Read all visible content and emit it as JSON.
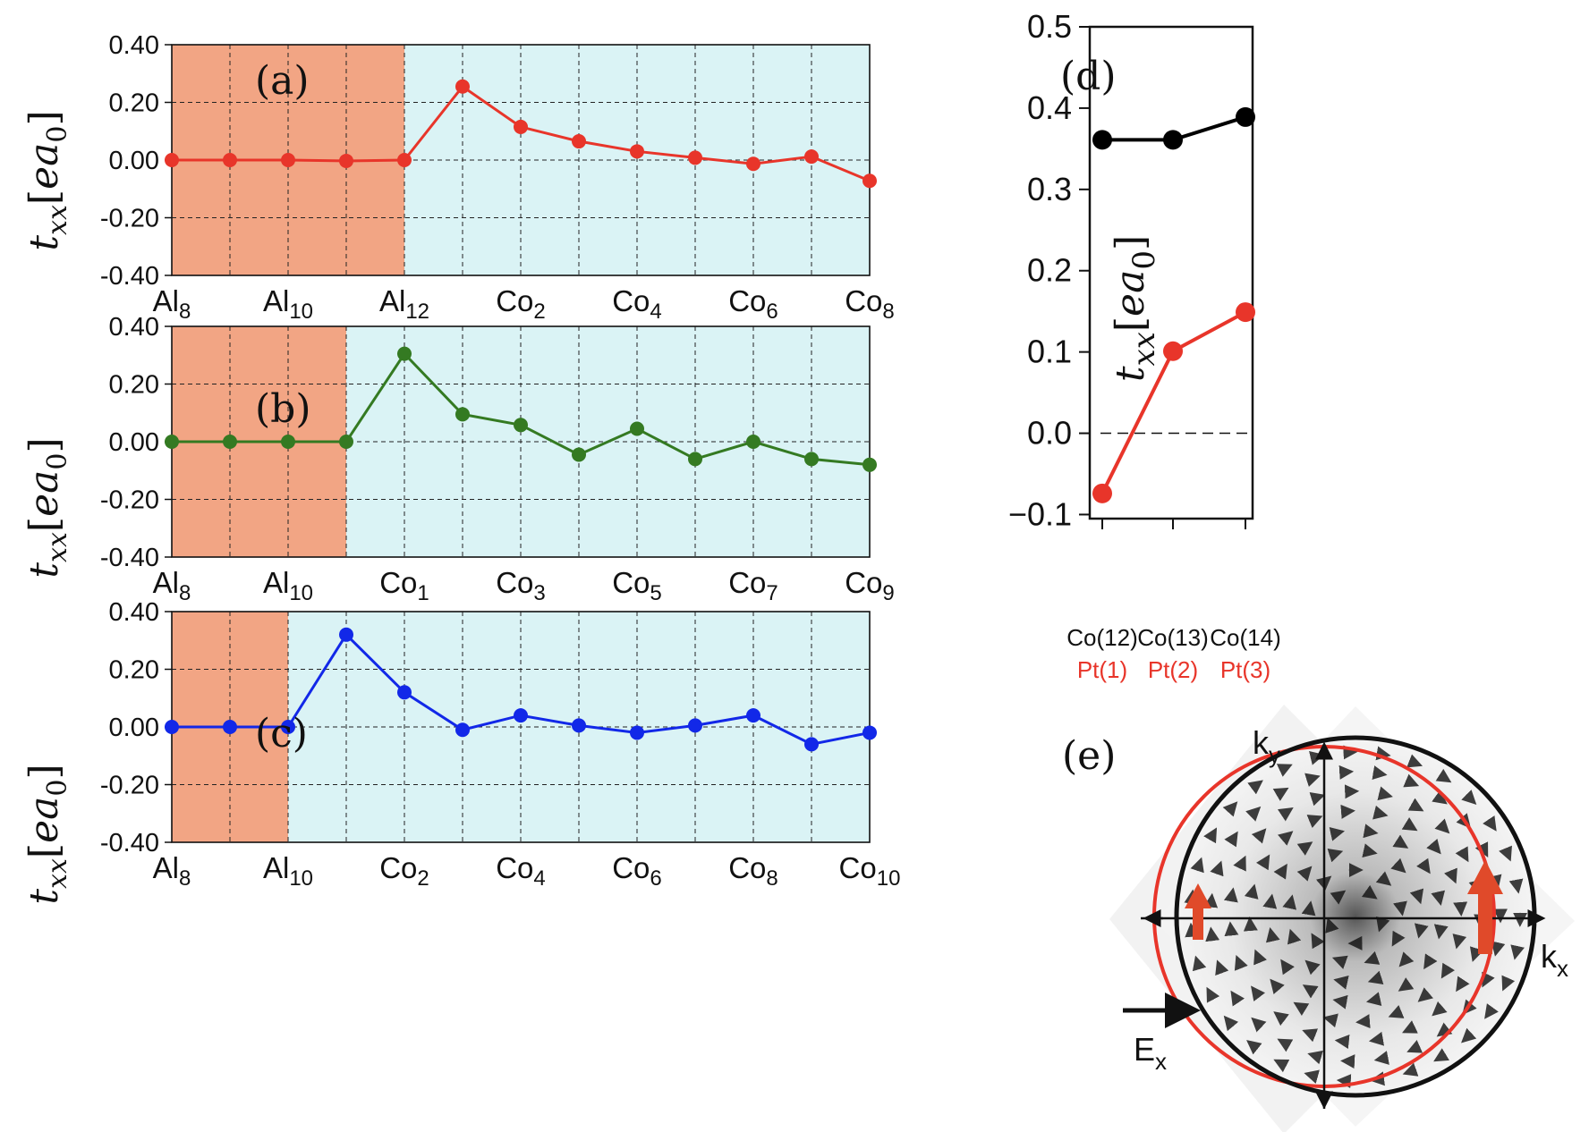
{
  "colors": {
    "al_region": "#f2a584",
    "co_region": "#daf3f5",
    "series_a": "#e8352a",
    "series_b": "#347a22",
    "series_c": "#1228e8",
    "d_black": "#000000",
    "d_red": "#e8352a"
  },
  "chart_data": [
    {
      "id": "a",
      "type": "line",
      "panel_label": "(a)",
      "ylabel_main": "t",
      "ylabel_sub": "xx",
      "ylabel_unit_open": "[",
      "ylabel_unit": "ea",
      "ylabel_unit_sub": "0",
      "ylabel_unit_close": "]",
      "ylim": [
        -0.4,
        0.4
      ],
      "yticks": [
        "0.40",
        "0.20",
        "0.00",
        "-0.20",
        "-0.40"
      ],
      "xlim": [
        8,
        20
      ],
      "al_region_end": 12,
      "xtick_labels": [
        {
          "x": 8,
          "base": "Al",
          "sub": "8"
        },
        {
          "x": 10,
          "base": "Al",
          "sub": "10"
        },
        {
          "x": 12,
          "base": "Al",
          "sub": "12"
        },
        {
          "x": 14,
          "base": "Co",
          "sub": "2"
        },
        {
          "x": 16,
          "base": "Co",
          "sub": "4"
        },
        {
          "x": 18,
          "base": "Co",
          "sub": "6"
        },
        {
          "x": 20,
          "base": "Co",
          "sub": "8"
        }
      ],
      "x": [
        8,
        9,
        10,
        11,
        12,
        13,
        14,
        15,
        16,
        17,
        18,
        19,
        20
      ],
      "y": [
        0.0,
        0.0,
        0.0,
        -0.003,
        0.0,
        0.255,
        0.115,
        0.065,
        0.03,
        0.008,
        -0.013,
        0.012,
        -0.072
      ],
      "color": "#e8352a",
      "grid": true
    },
    {
      "id": "b",
      "type": "line",
      "panel_label": "(b)",
      "ylabel_main": "t",
      "ylabel_sub": "xx",
      "ylabel_unit_open": "[",
      "ylabel_unit": "ea",
      "ylabel_unit_sub": "0",
      "ylabel_unit_close": "]",
      "ylim": [
        -0.4,
        0.4
      ],
      "yticks": [
        "0.40",
        "0.20",
        "0.00",
        "-0.20",
        "-0.40"
      ],
      "xlim": [
        8,
        20
      ],
      "al_region_end": 11,
      "xtick_labels": [
        {
          "x": 8,
          "base": "Al",
          "sub": "8"
        },
        {
          "x": 10,
          "base": "Al",
          "sub": "10"
        },
        {
          "x": 12,
          "base": "Co",
          "sub": "1"
        },
        {
          "x": 14,
          "base": "Co",
          "sub": "3"
        },
        {
          "x": 16,
          "base": "Co",
          "sub": "5"
        },
        {
          "x": 18,
          "base": "Co",
          "sub": "7"
        },
        {
          "x": 20,
          "base": "Co",
          "sub": "9"
        }
      ],
      "x": [
        8,
        9,
        10,
        11,
        12,
        13,
        14,
        15,
        16,
        17,
        18,
        19,
        20
      ],
      "y": [
        0.0,
        0.0,
        0.0,
        0.0,
        0.305,
        0.095,
        0.058,
        -0.045,
        0.045,
        -0.06,
        0.0,
        -0.06,
        -0.08
      ],
      "color": "#347a22",
      "grid": true
    },
    {
      "id": "c",
      "type": "line",
      "panel_label": "(c)",
      "ylabel_main": "t",
      "ylabel_sub": "xx",
      "ylabel_unit_open": "[",
      "ylabel_unit": "ea",
      "ylabel_unit_sub": "0",
      "ylabel_unit_close": "]",
      "ylim": [
        -0.4,
        0.4
      ],
      "yticks": [
        "0.40",
        "0.20",
        "0.00",
        "-0.20",
        "-0.40"
      ],
      "xlim": [
        8,
        20
      ],
      "al_region_end": 10,
      "xtick_labels": [
        {
          "x": 8,
          "base": "Al",
          "sub": "8"
        },
        {
          "x": 10,
          "base": "Al",
          "sub": "10"
        },
        {
          "x": 12,
          "base": "Co",
          "sub": "2"
        },
        {
          "x": 14,
          "base": "Co",
          "sub": "4"
        },
        {
          "x": 16,
          "base": "Co",
          "sub": "6"
        },
        {
          "x": 18,
          "base": "Co",
          "sub": "8"
        },
        {
          "x": 20,
          "base": "Co",
          "sub": "10"
        }
      ],
      "x": [
        8,
        9,
        10,
        11,
        12,
        13,
        14,
        15,
        16,
        17,
        18,
        19,
        20
      ],
      "y": [
        0.0,
        0.0,
        0.0,
        0.32,
        0.12,
        -0.01,
        0.04,
        0.005,
        -0.02,
        0.005,
        0.04,
        -0.06,
        -0.02
      ],
      "color": "#1228e8",
      "grid": true
    },
    {
      "id": "d",
      "type": "line",
      "panel_label": "(d)",
      "ylabel_main": "t",
      "ylabel_sub": "xx",
      "ylabel_unit_open": "[",
      "ylabel_unit": "ea",
      "ylabel_unit_sub": "0",
      "ylabel_unit_close": "]",
      "ylim": [
        -0.1,
        0.5
      ],
      "yticks": [
        "0.5",
        "0.4",
        "0.3",
        "0.2",
        "0.1",
        "0.0",
        "−0.1"
      ],
      "categories_black": [
        "Co(12)",
        "Co(13)",
        "Co(14)"
      ],
      "categories_red": [
        "Pt(1)",
        "Pt(2)",
        "Pt(3)"
      ],
      "series": [
        {
          "values": [
            0.361,
            0.361,
            0.389
          ],
          "color": "#000000"
        },
        {
          "values": [
            -0.074,
            0.101,
            0.149
          ],
          "color": "#e8352a"
        }
      ],
      "zero_line": "dashed"
    }
  ],
  "panel_e": {
    "panel_label": "(e)",
    "ky_base": "k",
    "ky_sub": "y",
    "kx_base": "k",
    "kx_sub": "x",
    "ex_base": "E",
    "ex_sub": "x"
  }
}
